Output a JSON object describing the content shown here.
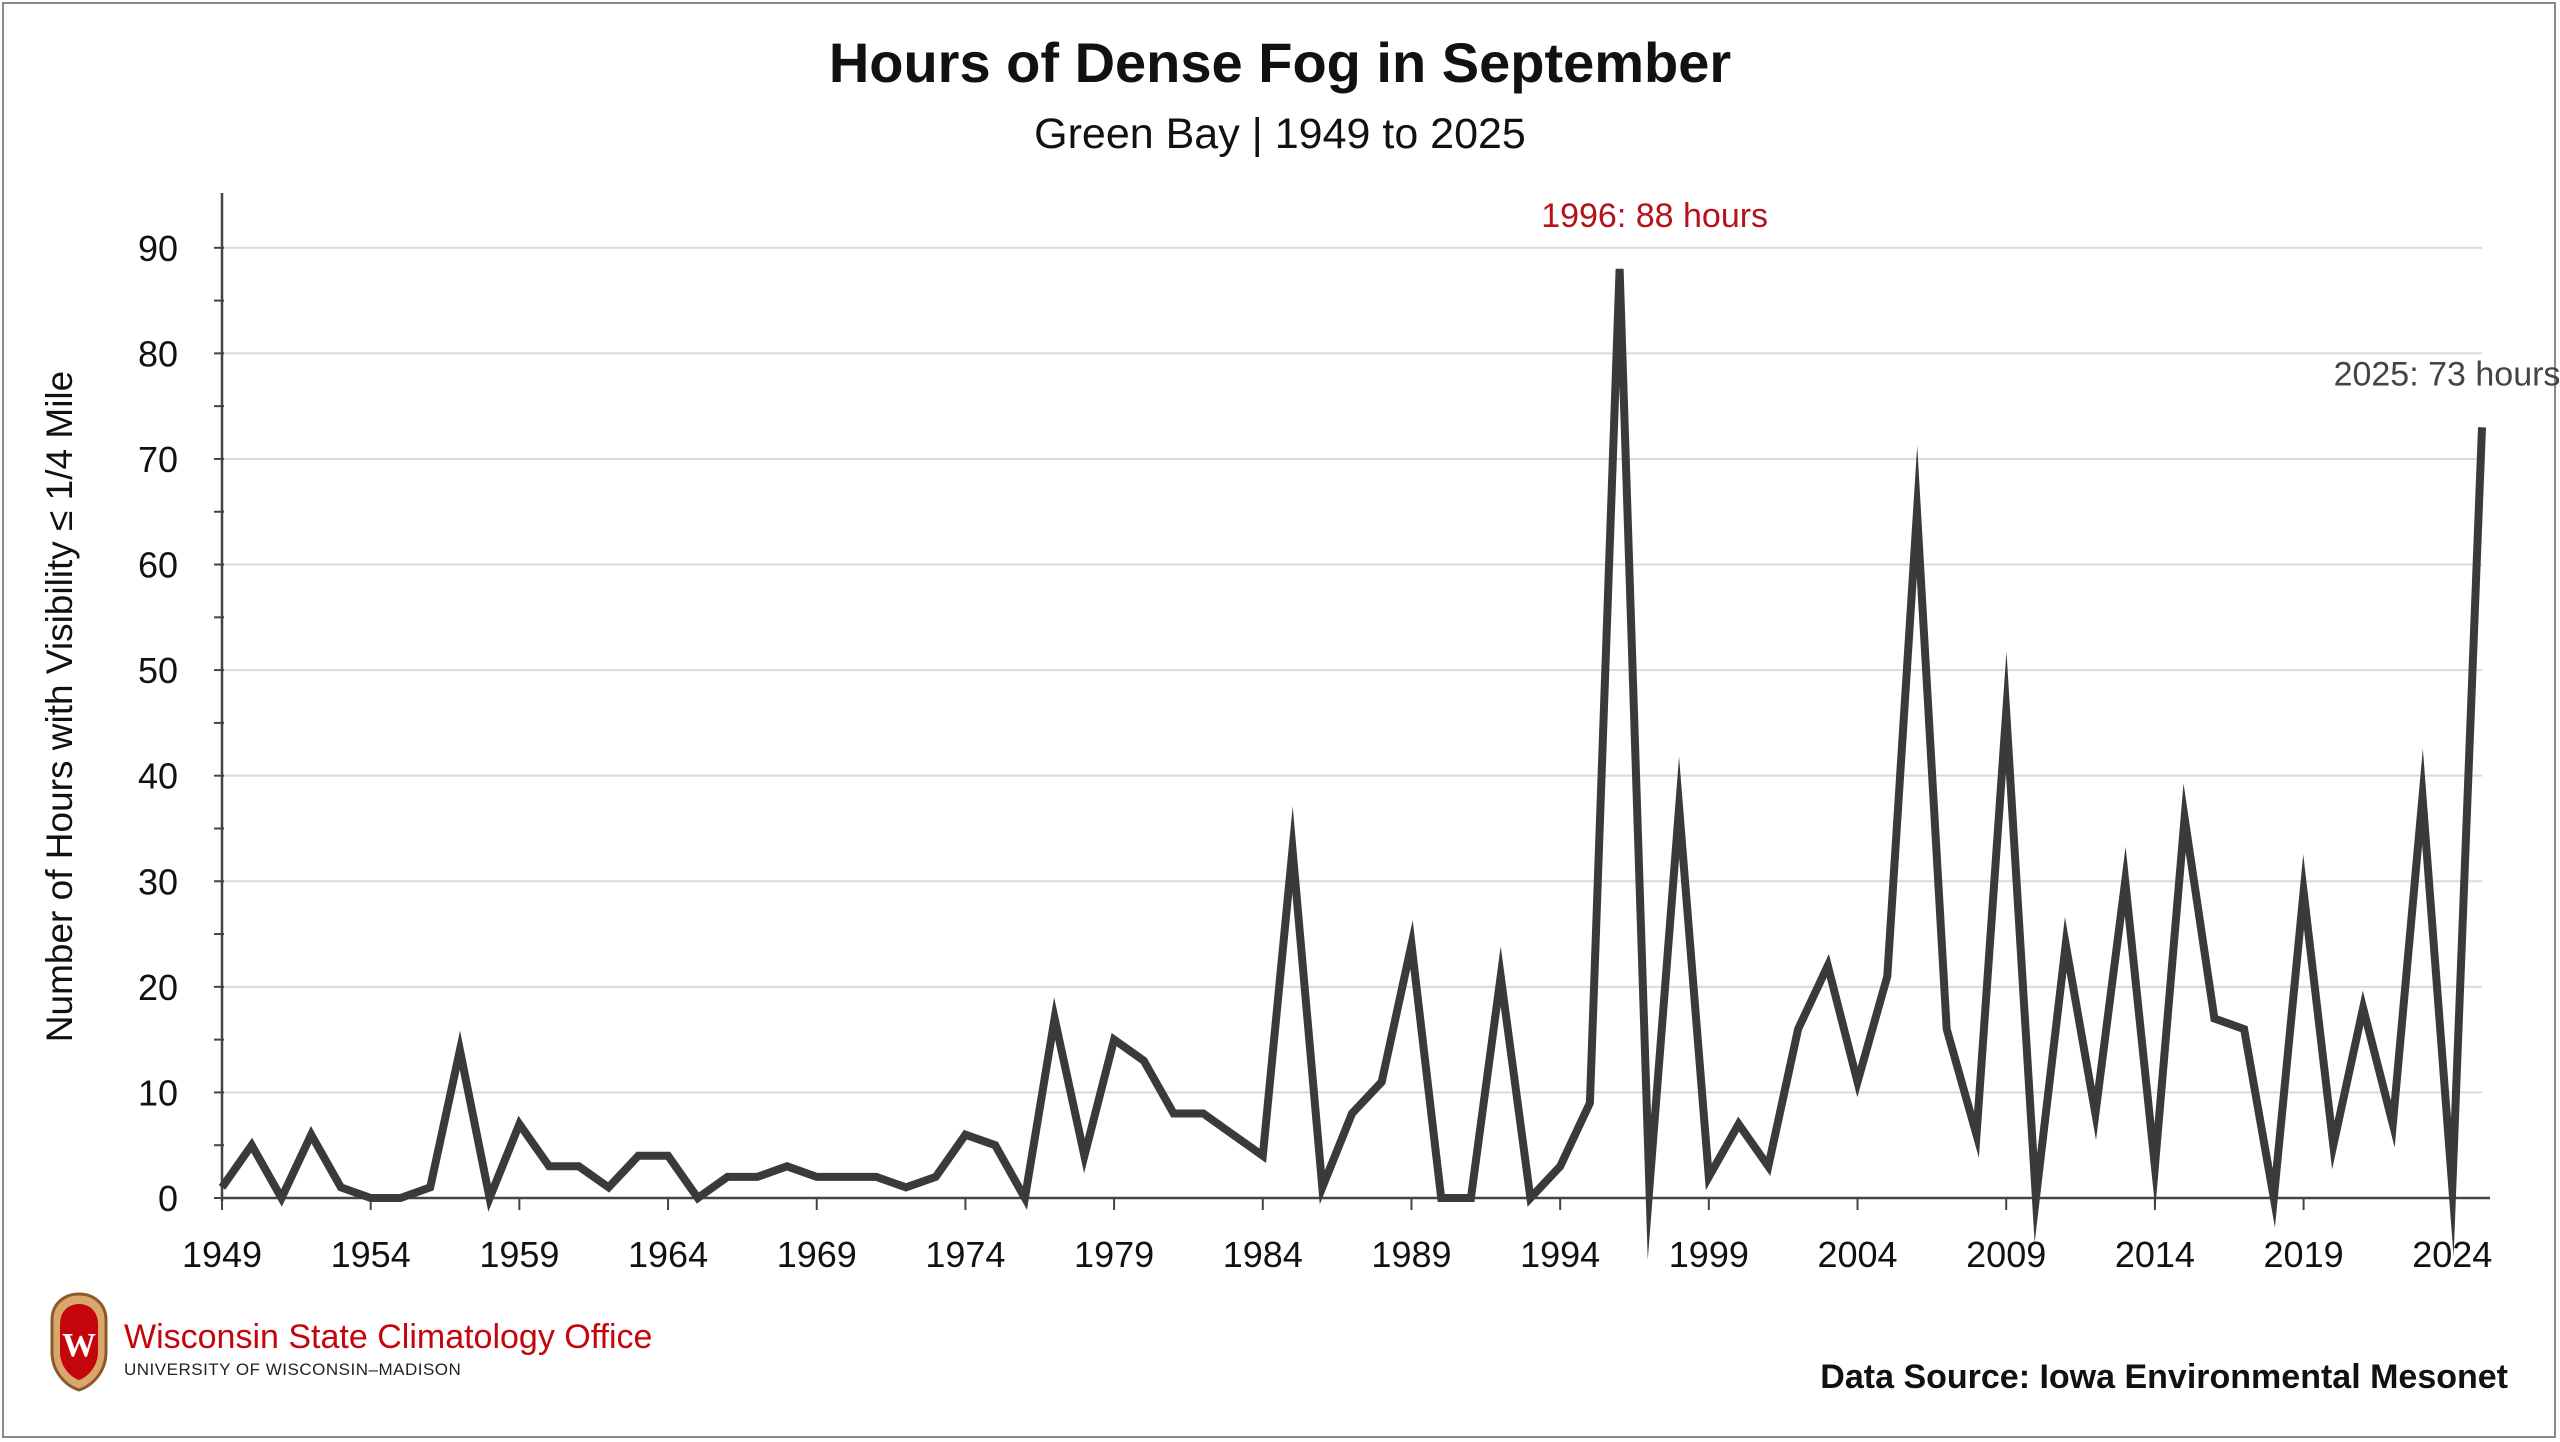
{
  "chart_data": {
    "type": "line",
    "title": "Hours of Dense Fog in September",
    "subtitle": "Green Bay | 1949 to 2025",
    "ylabel": "Number of Hours with Visibility ≤ 1/4 Mile",
    "xlabel": "",
    "ylim": [
      0,
      95
    ],
    "yticks": [
      0,
      10,
      20,
      30,
      40,
      50,
      60,
      70,
      80,
      90
    ],
    "xlim": [
      1949,
      2025
    ],
    "xticks": [
      1949,
      1954,
      1959,
      1964,
      1969,
      1974,
      1979,
      1984,
      1989,
      1994,
      1999,
      2004,
      2009,
      2014,
      2019,
      2024
    ],
    "grid": "horizontal",
    "x": [
      1949,
      1950,
      1951,
      1952,
      1953,
      1954,
      1955,
      1956,
      1957,
      1958,
      1959,
      1960,
      1961,
      1962,
      1963,
      1964,
      1965,
      1966,
      1967,
      1968,
      1969,
      1970,
      1971,
      1972,
      1973,
      1974,
      1975,
      1976,
      1977,
      1978,
      1979,
      1980,
      1981,
      1982,
      1983,
      1984,
      1985,
      1986,
      1987,
      1988,
      1989,
      1990,
      1991,
      1992,
      1993,
      1994,
      1995,
      1996,
      1997,
      1998,
      1999,
      2000,
      2001,
      2002,
      2003,
      2004,
      2005,
      2006,
      2007,
      2008,
      2009,
      2010,
      2011,
      2012,
      2013,
      2014,
      2015,
      2016,
      2017,
      2018,
      2019,
      2020,
      2021,
      2022,
      2023,
      2024,
      2025
    ],
    "series": [
      {
        "values": [
          1,
          5,
          0,
          6,
          1,
          0,
          0,
          1,
          14,
          0,
          7,
          3,
          3,
          1,
          4,
          4,
          0,
          2,
          2,
          3,
          2,
          2,
          2,
          1,
          2,
          6,
          5,
          0,
          17,
          4,
          15,
          13,
          8,
          8,
          6,
          4,
          33,
          1,
          8,
          11,
          24,
          0,
          0,
          21,
          0,
          3,
          9,
          88,
          1,
          37,
          2,
          7,
          3,
          16,
          22,
          11,
          21,
          65,
          16,
          6,
          46,
          0,
          24,
          8,
          30,
          3,
          36,
          17,
          16,
          0,
          29,
          5,
          18,
          7,
          38,
          1,
          73
        ],
        "color": "#3a3a3a"
      }
    ],
    "annotations": [
      {
        "x": 1996,
        "y": 88,
        "text": "1996: 88 hours",
        "color": "#b5121b"
      },
      {
        "x": 2025,
        "y": 73,
        "text": "2025: 73 hours",
        "color": "#444444"
      }
    ]
  },
  "logo": {
    "name": "Wisconsin State Climatology Office",
    "subname": "UNIVERSITY OF WISCONSIN–MADISON",
    "crest_letter": "W"
  },
  "source": "Data Source: Iowa Environmental Mesonet"
}
